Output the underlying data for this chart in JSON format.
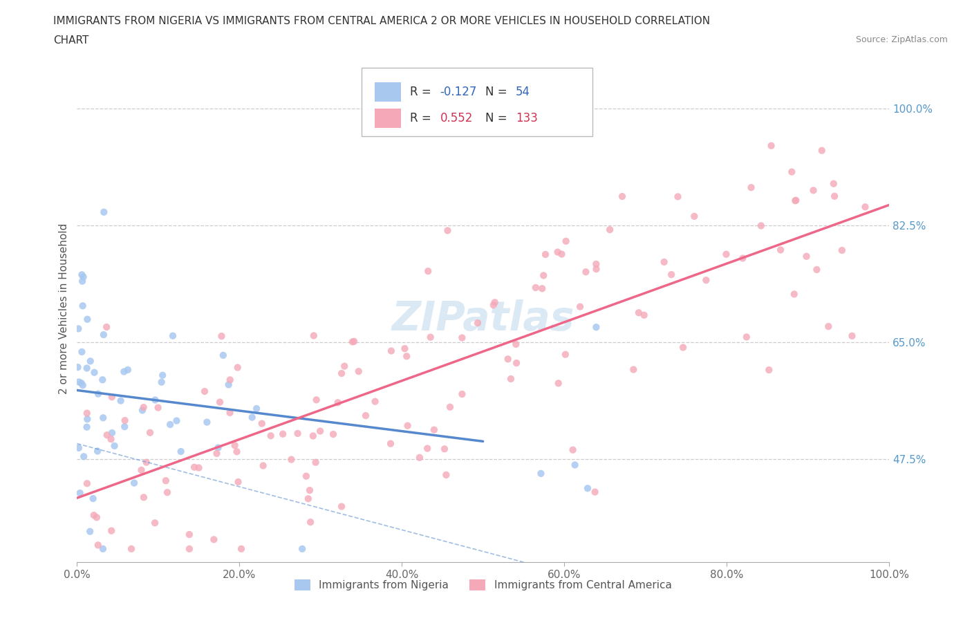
{
  "title_line1": "IMMIGRANTS FROM NIGERIA VS IMMIGRANTS FROM CENTRAL AMERICA 2 OR MORE VEHICLES IN HOUSEHOLD CORRELATION",
  "title_line2": "CHART",
  "source": "Source: ZipAtlas.com",
  "ylabel": "2 or more Vehicles in Household",
  "xticklabels": [
    "0.0%",
    "20.0%",
    "40.0%",
    "60.0%",
    "80.0%",
    "100.0%"
  ],
  "yticklabels": [
    "47.5%",
    "65.0%",
    "82.5%",
    "100.0%"
  ],
  "ytick_values": [
    0.475,
    0.65,
    0.825,
    1.0
  ],
  "xlim": [
    0.0,
    1.0
  ],
  "ylim": [
    0.32,
    1.08
  ],
  "nigeria_R": -0.127,
  "nigeria_N": 54,
  "central_R": 0.552,
  "central_N": 133,
  "nigeria_color": "#a8c8f0",
  "central_color": "#f4a8b8",
  "nigeria_line_color": "#5588cc",
  "central_line_color": "#ee6688",
  "watermark": "ZIPatlas",
  "legend_nigeria_label": "Immigrants from Nigeria",
  "legend_central_label": "Immigrants from Central America",
  "nigeria_seed": 42,
  "central_seed": 99
}
